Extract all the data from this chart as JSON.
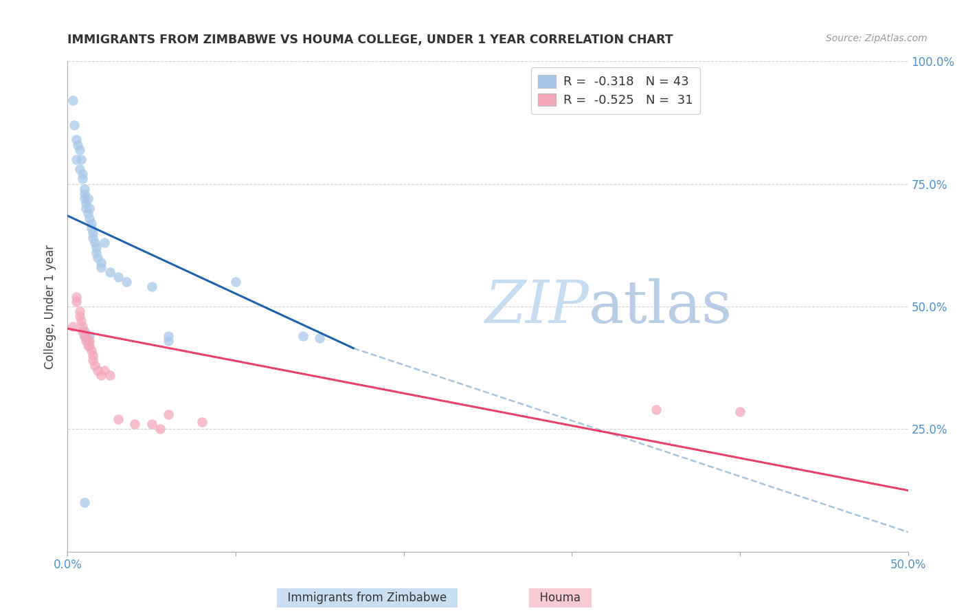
{
  "title": "IMMIGRANTS FROM ZIMBABWE VS HOUMA COLLEGE, UNDER 1 YEAR CORRELATION CHART",
  "source": "Source: ZipAtlas.com",
  "ylabel": "College, Under 1 year",
  "xlim": [
    0.0,
    0.5
  ],
  "ylim": [
    0.0,
    1.0
  ],
  "xticks": [
    0.0,
    0.1,
    0.2,
    0.3,
    0.4,
    0.5
  ],
  "xticklabels": [
    "0.0%",
    "",
    "",
    "",
    "",
    "50.0%"
  ],
  "yticks_right": [
    0.0,
    0.25,
    0.5,
    0.75,
    1.0
  ],
  "ytick_labels_right": [
    "",
    "25.0%",
    "50.0%",
    "75.0%",
    "100.0%"
  ],
  "legend_r1": "R = -0.318",
  "legend_n1": "N = 43",
  "legend_r2": "R = -0.525",
  "legend_n2": "N =  31",
  "blue_color": "#A8C8E8",
  "pink_color": "#F4A8BC",
  "trend_blue_color": "#2060B0",
  "trend_pink_color": "#E8406A",
  "trend_dashed_color": "#A8C4E0",
  "background_color": "#FFFFFF",
  "grid_color": "#C8C8C8",
  "axis_label_color": "#5090D0",
  "legend_text_dark": "#222222",
  "legend_r_color": "#E84060",
  "legend_n_color": "#5090D0",
  "blue_scatter": [
    [
      0.003,
      0.92
    ],
    [
      0.004,
      0.87
    ],
    [
      0.005,
      0.84
    ],
    [
      0.005,
      0.8
    ],
    [
      0.006,
      0.83
    ],
    [
      0.007,
      0.82
    ],
    [
      0.007,
      0.78
    ],
    [
      0.008,
      0.8
    ],
    [
      0.009,
      0.77
    ],
    [
      0.009,
      0.76
    ],
    [
      0.01,
      0.74
    ],
    [
      0.01,
      0.73
    ],
    [
      0.01,
      0.72
    ],
    [
      0.011,
      0.71
    ],
    [
      0.011,
      0.7
    ],
    [
      0.012,
      0.72
    ],
    [
      0.012,
      0.69
    ],
    [
      0.013,
      0.7
    ],
    [
      0.013,
      0.68
    ],
    [
      0.014,
      0.67
    ],
    [
      0.014,
      0.66
    ],
    [
      0.015,
      0.65
    ],
    [
      0.015,
      0.64
    ],
    [
      0.016,
      0.63
    ],
    [
      0.017,
      0.62
    ],
    [
      0.017,
      0.61
    ],
    [
      0.018,
      0.6
    ],
    [
      0.02,
      0.59
    ],
    [
      0.02,
      0.58
    ],
    [
      0.022,
      0.63
    ],
    [
      0.025,
      0.57
    ],
    [
      0.03,
      0.56
    ],
    [
      0.035,
      0.55
    ],
    [
      0.05,
      0.54
    ],
    [
      0.06,
      0.44
    ],
    [
      0.06,
      0.43
    ],
    [
      0.1,
      0.55
    ],
    [
      0.14,
      0.44
    ],
    [
      0.15,
      0.435
    ],
    [
      0.01,
      0.45
    ],
    [
      0.01,
      0.44
    ],
    [
      0.013,
      0.44
    ],
    [
      0.01,
      0.1
    ]
  ],
  "pink_scatter": [
    [
      0.005,
      0.52
    ],
    [
      0.005,
      0.51
    ],
    [
      0.007,
      0.49
    ],
    [
      0.007,
      0.48
    ],
    [
      0.008,
      0.47
    ],
    [
      0.009,
      0.46
    ],
    [
      0.009,
      0.45
    ],
    [
      0.01,
      0.44
    ],
    [
      0.011,
      0.44
    ],
    [
      0.011,
      0.43
    ],
    [
      0.012,
      0.43
    ],
    [
      0.012,
      0.42
    ],
    [
      0.013,
      0.43
    ],
    [
      0.013,
      0.42
    ],
    [
      0.014,
      0.41
    ],
    [
      0.015,
      0.4
    ],
    [
      0.015,
      0.39
    ],
    [
      0.016,
      0.38
    ],
    [
      0.018,
      0.37
    ],
    [
      0.02,
      0.36
    ],
    [
      0.022,
      0.37
    ],
    [
      0.025,
      0.36
    ],
    [
      0.03,
      0.27
    ],
    [
      0.04,
      0.26
    ],
    [
      0.05,
      0.26
    ],
    [
      0.055,
      0.25
    ],
    [
      0.06,
      0.28
    ],
    [
      0.08,
      0.265
    ],
    [
      0.35,
      0.29
    ],
    [
      0.4,
      0.285
    ],
    [
      0.003,
      0.46
    ]
  ],
  "blue_trend_x": [
    0.0,
    0.17
  ],
  "blue_trend_y": [
    0.685,
    0.415
  ],
  "pink_trend_x": [
    0.0,
    0.5
  ],
  "pink_trend_y": [
    0.455,
    0.125
  ],
  "dashed_trend_x": [
    0.17,
    0.5
  ],
  "dashed_trend_y": [
    0.415,
    0.04
  ],
  "watermark_zip_color": "#C8DCF0",
  "watermark_atlas_color": "#C0D0E8"
}
